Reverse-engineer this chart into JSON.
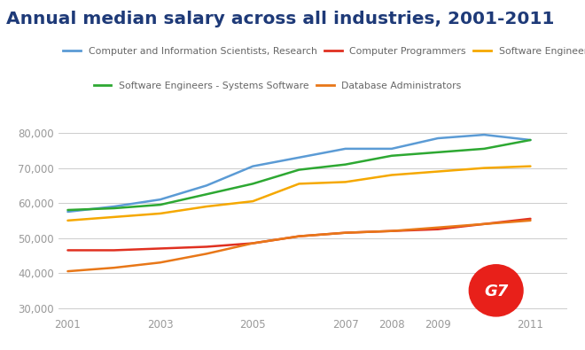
{
  "title": "Annual median salary across all industries, 2001-2011",
  "title_color": "#1e3a78",
  "background_color": "#ffffff",
  "years": [
    2001,
    2002,
    2003,
    2004,
    2005,
    2006,
    2007,
    2008,
    2009,
    2010,
    2011
  ],
  "series": [
    {
      "label": "Computer and Information Scientists, Research",
      "color": "#5b9bd5",
      "values": [
        57500,
        59000,
        61000,
        65000,
        70500,
        73000,
        75500,
        75500,
        78500,
        79500,
        78000
      ]
    },
    {
      "label": "Computer Programmers",
      "color": "#e03020",
      "values": [
        46500,
        46500,
        47000,
        47500,
        48500,
        50500,
        51500,
        52000,
        52500,
        54000,
        55500
      ]
    },
    {
      "label": "Software Engineers - Applications",
      "color": "#f5a800",
      "values": [
        55000,
        56000,
        57000,
        59000,
        60500,
        65500,
        66000,
        68000,
        69000,
        70000,
        70500
      ]
    },
    {
      "label": "Software Engineers - Systems Software",
      "color": "#2da832",
      "values": [
        58000,
        58500,
        59500,
        62500,
        65500,
        69500,
        71000,
        73500,
        74500,
        75500,
        78000
      ]
    },
    {
      "label": "Database Administrators",
      "color": "#e87718",
      "values": [
        40500,
        41500,
        43000,
        45500,
        48500,
        50500,
        51500,
        52000,
        53000,
        54000,
        55000
      ]
    }
  ],
  "xlim": [
    2000.8,
    2011.8
  ],
  "ylim": [
    28000,
    84000
  ],
  "yticks": [
    30000,
    40000,
    50000,
    60000,
    70000,
    80000
  ],
  "xticks": [
    2001,
    2003,
    2005,
    2007,
    2008,
    2009,
    2011
  ],
  "grid_color": "#cccccc",
  "tick_label_color": "#999999",
  "legend_text_color": "#666666",
  "legend_fontsize": 7.8,
  "title_fontsize": 14.5
}
